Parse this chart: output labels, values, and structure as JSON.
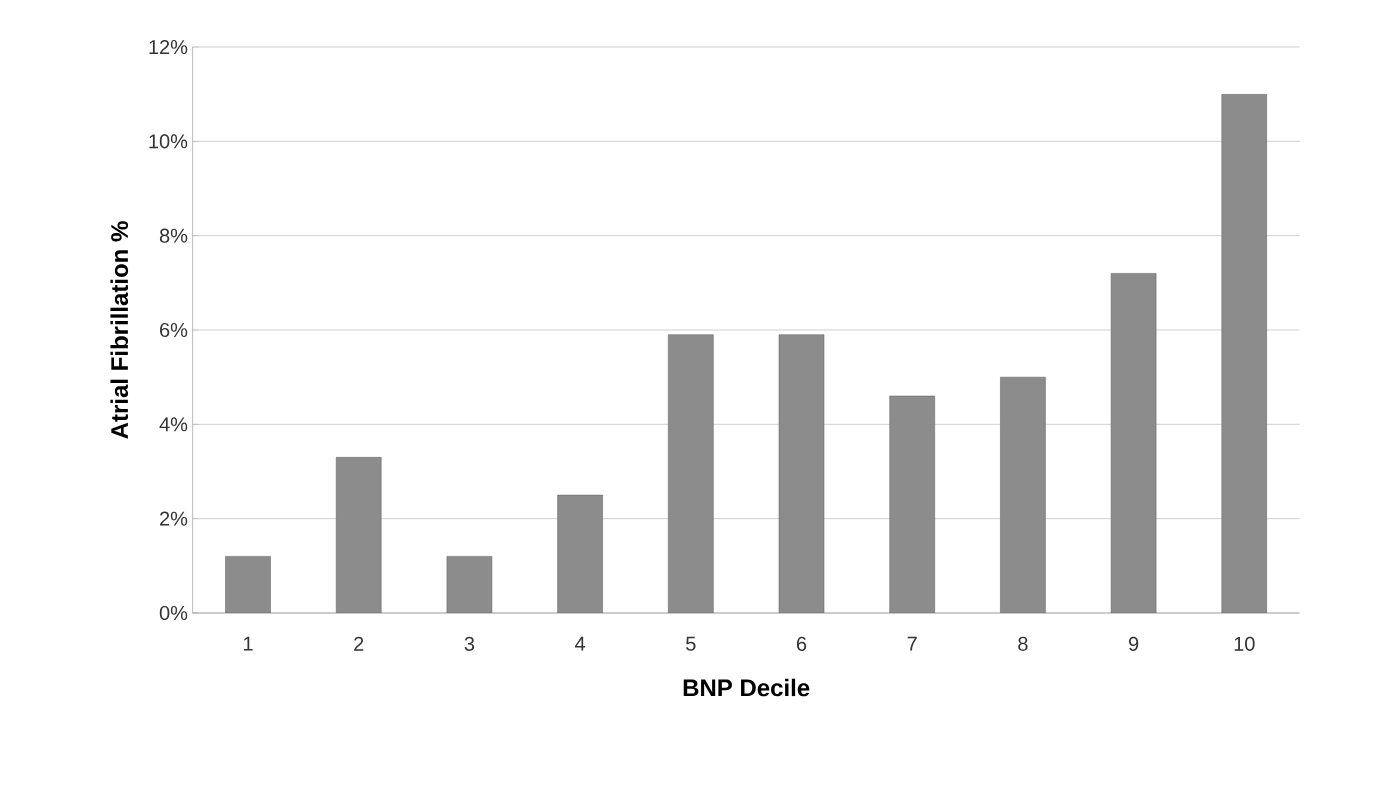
{
  "chart_data": {
    "type": "bar",
    "xlabel": "BNP Decile",
    "ylabel": "Atrial Fibrillation %",
    "categories": [
      "1",
      "2",
      "3",
      "4",
      "5",
      "6",
      "7",
      "8",
      "9",
      "10"
    ],
    "values": [
      1.2,
      3.3,
      1.2,
      2.5,
      5.9,
      5.9,
      4.6,
      5.0,
      7.2,
      11.0
    ],
    "color": "#8c8c8c",
    "ylim": [
      0,
      12
    ],
    "yticks": [
      {
        "value": 0,
        "label": "0%"
      },
      {
        "value": 2,
        "label": "2%"
      },
      {
        "value": 4,
        "label": "4%"
      },
      {
        "value": 6,
        "label": "6%"
      },
      {
        "value": 8,
        "label": "8%"
      },
      {
        "value": 10,
        "label": "10%"
      },
      {
        "value": 12,
        "label": "12%"
      }
    ],
    "grid": "y"
  }
}
